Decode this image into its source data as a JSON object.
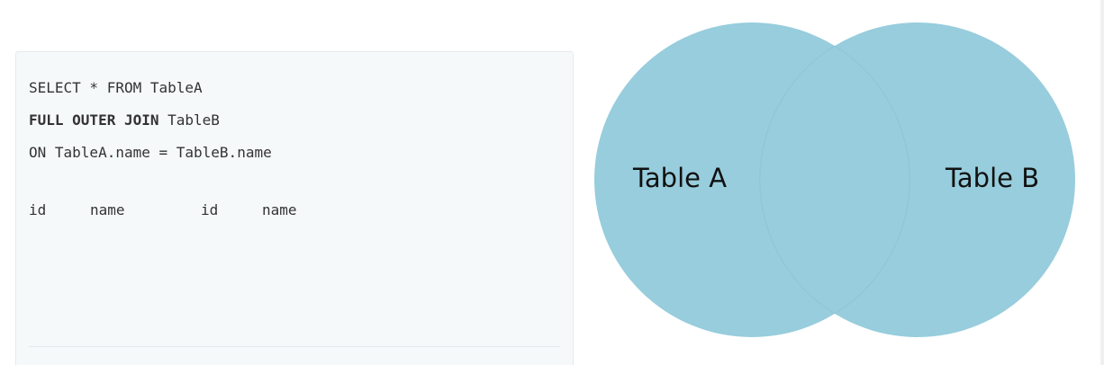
{
  "query": {
    "line1": "SELECT * FROM TableA",
    "line2_keyword": "FULL OUTER JOIN",
    "line2_rest": " TableB",
    "line3": "ON TableA.name = TableB.name"
  },
  "result_columns": [
    "id",
    "name",
    "id",
    "name"
  ],
  "venn": {
    "left_label": "Table A",
    "right_label": "Table B",
    "fill_color": "#97cddd",
    "overlap_edge_color": "#8fc4d4"
  }
}
